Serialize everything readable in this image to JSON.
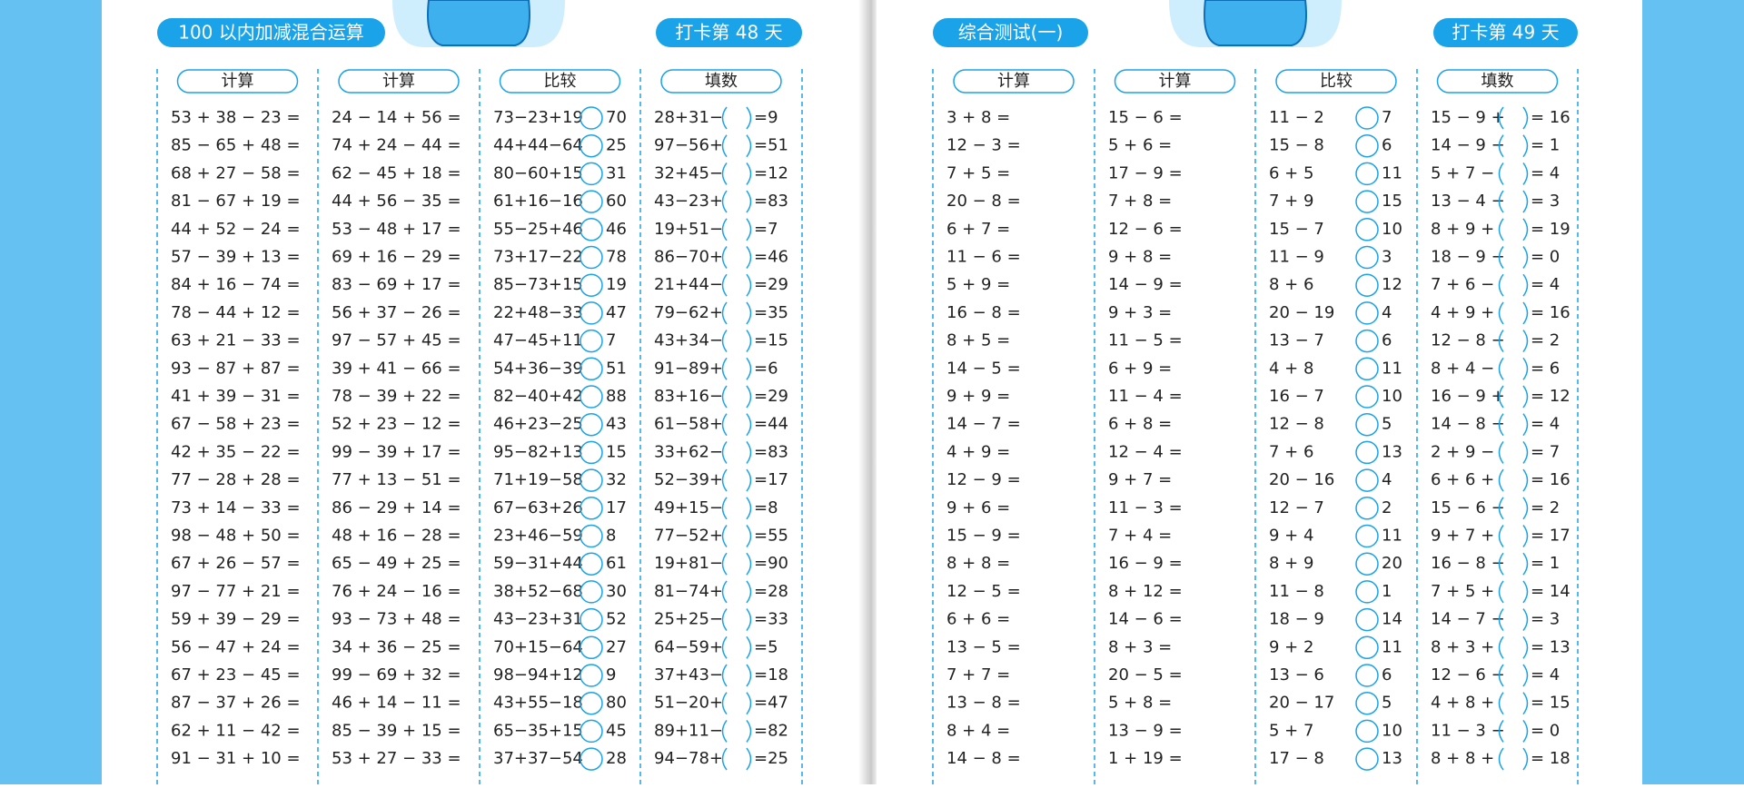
{
  "pages": [
    {
      "title": "100 以内加减混合运算",
      "day": "打卡第 48 天",
      "columns": [
        {
          "heading": "计算",
          "rows": [
            "53 + 38 − 23 =",
            "85 − 65 + 48 =",
            "68 + 27 − 58 =",
            "81 − 67 + 19 =",
            "44 + 52 − 24 =",
            "57 − 39 + 13 =",
            "84 + 16 − 74 =",
            "78 − 44 + 12 =",
            "63 + 21 − 33 =",
            "93 − 87 + 87 =",
            "41 + 39 − 31 =",
            "67 − 58 + 23 =",
            "42 + 35 − 22 =",
            "77 − 28 + 28 =",
            "73 + 14 − 33 =",
            "98 − 48 + 50 =",
            "67 + 26 − 57 =",
            "97 − 77 + 21 =",
            "59 + 39 − 29 =",
            "56 − 47 + 24 =",
            "67 + 23 − 45 =",
            "87 − 37 + 26 =",
            "62 + 11 − 42 =",
            "91 − 31 + 10 ="
          ]
        },
        {
          "heading": "计算",
          "rows": [
            "24 − 14 + 56 =",
            "74 + 24 − 44 =",
            "62 − 45 + 18 =",
            "44 + 56 − 35 =",
            "53 − 48 + 17 =",
            "69 + 16 − 29 =",
            "83 − 69 + 17 =",
            "56 + 37 − 26 =",
            "97 − 57 + 45 =",
            "39 + 41 − 66 =",
            "78 − 39 + 22 =",
            "52 + 23 − 12 =",
            "99 − 39 + 17 =",
            "77 + 13 − 51 =",
            "86 − 29 + 14 =",
            "48 + 16 − 28 =",
            "65 − 49 + 25 =",
            "76 + 24 − 16 =",
            "93 − 73 + 48 =",
            "34 + 36 − 25 =",
            "99 − 69 + 32 =",
            "46 + 14 − 11 =",
            "85 − 39 + 15 =",
            "53 + 27 − 33 ="
          ]
        },
        {
          "heading": "比较",
          "rows": [
            [
              "73−23+19",
              "70"
            ],
            [
              "44+44−64",
              "25"
            ],
            [
              "80−60+15",
              "31"
            ],
            [
              "61+16−16",
              "60"
            ],
            [
              "55−25+46",
              "46"
            ],
            [
              "73+17−22",
              "78"
            ],
            [
              "85−73+15",
              "19"
            ],
            [
              "22+48−33",
              "47"
            ],
            [
              "47−45+11",
              "7"
            ],
            [
              "54+36−39",
              "51"
            ],
            [
              "82−40+42",
              "88"
            ],
            [
              "46+23−25",
              "43"
            ],
            [
              "95−82+13",
              "15"
            ],
            [
              "71+19−58",
              "32"
            ],
            [
              "67−63+26",
              "17"
            ],
            [
              "23+46−59",
              "8"
            ],
            [
              "59−31+44",
              "61"
            ],
            [
              "38+52−68",
              "30"
            ],
            [
              "43−23+31",
              "52"
            ],
            [
              "70+15−64",
              "27"
            ],
            [
              "98−94+12",
              "9"
            ],
            [
              "43+55−18",
              "80"
            ],
            [
              "65−35+15",
              "45"
            ],
            [
              "37+37−54",
              "28"
            ]
          ]
        },
        {
          "heading": "填数",
          "rows": [
            [
              "28+31−",
              "=9"
            ],
            [
              "97−56+",
              "=51"
            ],
            [
              "32+45−",
              "=12"
            ],
            [
              "43−23+",
              "=83"
            ],
            [
              "19+51−",
              "=7"
            ],
            [
              "86−70+",
              "=46"
            ],
            [
              "21+44−",
              "=29"
            ],
            [
              "79−62+",
              "=35"
            ],
            [
              "43+34−",
              "=15"
            ],
            [
              "91−89+",
              "=6"
            ],
            [
              "83+16−",
              "=29"
            ],
            [
              "61−58+",
              "=44"
            ],
            [
              "33+62−",
              "=83"
            ],
            [
              "52−39+",
              "=17"
            ],
            [
              "49+15−",
              "=8"
            ],
            [
              "77−52+",
              "=55"
            ],
            [
              "19+81−",
              "=90"
            ],
            [
              "81−74+",
              "=28"
            ],
            [
              "25+25−",
              "=33"
            ],
            [
              "64−59+",
              "=5"
            ],
            [
              "37+43−",
              "=18"
            ],
            [
              "51−20+",
              "=47"
            ],
            [
              "89+11−",
              "=82"
            ],
            [
              "94−78+",
              "=25"
            ]
          ]
        }
      ]
    },
    {
      "title": "综合测试(一)",
      "day": "打卡第 49 天",
      "columns": [
        {
          "heading": "计算",
          "rows": [
            "3 + 8 =",
            "12 − 3 =",
            "7 + 5 =",
            "20 − 8 =",
            "6 + 7 =",
            "11 − 6 =",
            "5 + 9 =",
            "16 − 8 =",
            "8 + 5 =",
            "14 − 5 =",
            "9 + 9 =",
            "14 − 7 =",
            "4 + 9 =",
            "12 − 9 =",
            "9 + 6 =",
            "15 − 9 =",
            "8 + 8 =",
            "12 − 5 =",
            "6 + 6 =",
            "13 − 5 =",
            "7 + 7 =",
            "13 − 8 =",
            "8 + 4 =",
            "14 − 8 ="
          ]
        },
        {
          "heading": "计算",
          "rows": [
            "15 − 6 =",
            "5 + 6 =",
            "17 − 9 =",
            "7 + 8 =",
            "12 − 6 =",
            "9 + 8 =",
            "14 − 9 =",
            "9 + 3 =",
            "11 − 5 =",
            "6 + 9 =",
            "11 − 4 =",
            "6 + 8 =",
            "12 − 4 =",
            "9 + 7 =",
            "11 − 3 =",
            "7 + 4 =",
            "16 − 9 =",
            "8 + 12 =",
            "14 − 6 =",
            "8 + 3 =",
            "20 − 5 =",
            "5 + 8 =",
            "13 − 9 =",
            "1 + 19 ="
          ]
        },
        {
          "heading": "比较",
          "rows": [
            [
              "11 − 2",
              "7"
            ],
            [
              "15 − 8",
              "6"
            ],
            [
              "6 + 5",
              "11"
            ],
            [
              "7 + 9",
              "15"
            ],
            [
              "15 − 7",
              "10"
            ],
            [
              "11 − 9",
              "3"
            ],
            [
              "8 + 6",
              "12"
            ],
            [
              "20 − 19",
              "4"
            ],
            [
              "13 − 7",
              "6"
            ],
            [
              "4 + 8",
              "11"
            ],
            [
              "16 − 7",
              "10"
            ],
            [
              "12 − 8",
              "5"
            ],
            [
              "7 + 6",
              "13"
            ],
            [
              "20 − 16",
              "4"
            ],
            [
              "12 − 7",
              "2"
            ],
            [
              "9 + 4",
              "11"
            ],
            [
              "8 + 9",
              "20"
            ],
            [
              "11 − 8",
              "1"
            ],
            [
              "18 − 9",
              "14"
            ],
            [
              "9 + 2",
              "11"
            ],
            [
              "13 − 6",
              "6"
            ],
            [
              "20 − 17",
              "5"
            ],
            [
              "5 + 7",
              "10"
            ],
            [
              "17 − 8",
              "13"
            ]
          ]
        },
        {
          "heading": "填数",
          "rows": [
            [
              "15 − 9 +",
              "= 16"
            ],
            [
              "14 − 9 −",
              "= 1"
            ],
            [
              "5 + 7 −",
              "= 4"
            ],
            [
              "13 − 4 −",
              "= 3"
            ],
            [
              "8 + 9 +",
              "= 19"
            ],
            [
              "18 − 9 −",
              "= 0"
            ],
            [
              "7 + 6 −",
              "= 4"
            ],
            [
              "4 + 9 +",
              "= 16"
            ],
            [
              "12 − 8 −",
              "= 2"
            ],
            [
              "8 + 4 −",
              "= 6"
            ],
            [
              "16 − 9 +",
              "= 12"
            ],
            [
              "14 − 8 −",
              "= 4"
            ],
            [
              "2 + 9 −",
              "= 7"
            ],
            [
              "6 + 6 +",
              "= 16"
            ],
            [
              "15 − 6 −",
              "= 2"
            ],
            [
              "9 + 7 +",
              "= 17"
            ],
            [
              "16 − 8 −",
              "= 1"
            ],
            [
              "7 + 5 +",
              "= 14"
            ],
            [
              "14 − 7 −",
              "= 3"
            ],
            [
              "8 + 3 +",
              "= 13"
            ],
            [
              "12 − 6 −",
              "= 4"
            ],
            [
              "4 + 8 +",
              "= 15"
            ],
            [
              "11 − 3 −",
              "= 0"
            ],
            [
              "8 + 8 +",
              "= 18"
            ]
          ]
        }
      ]
    }
  ]
}
